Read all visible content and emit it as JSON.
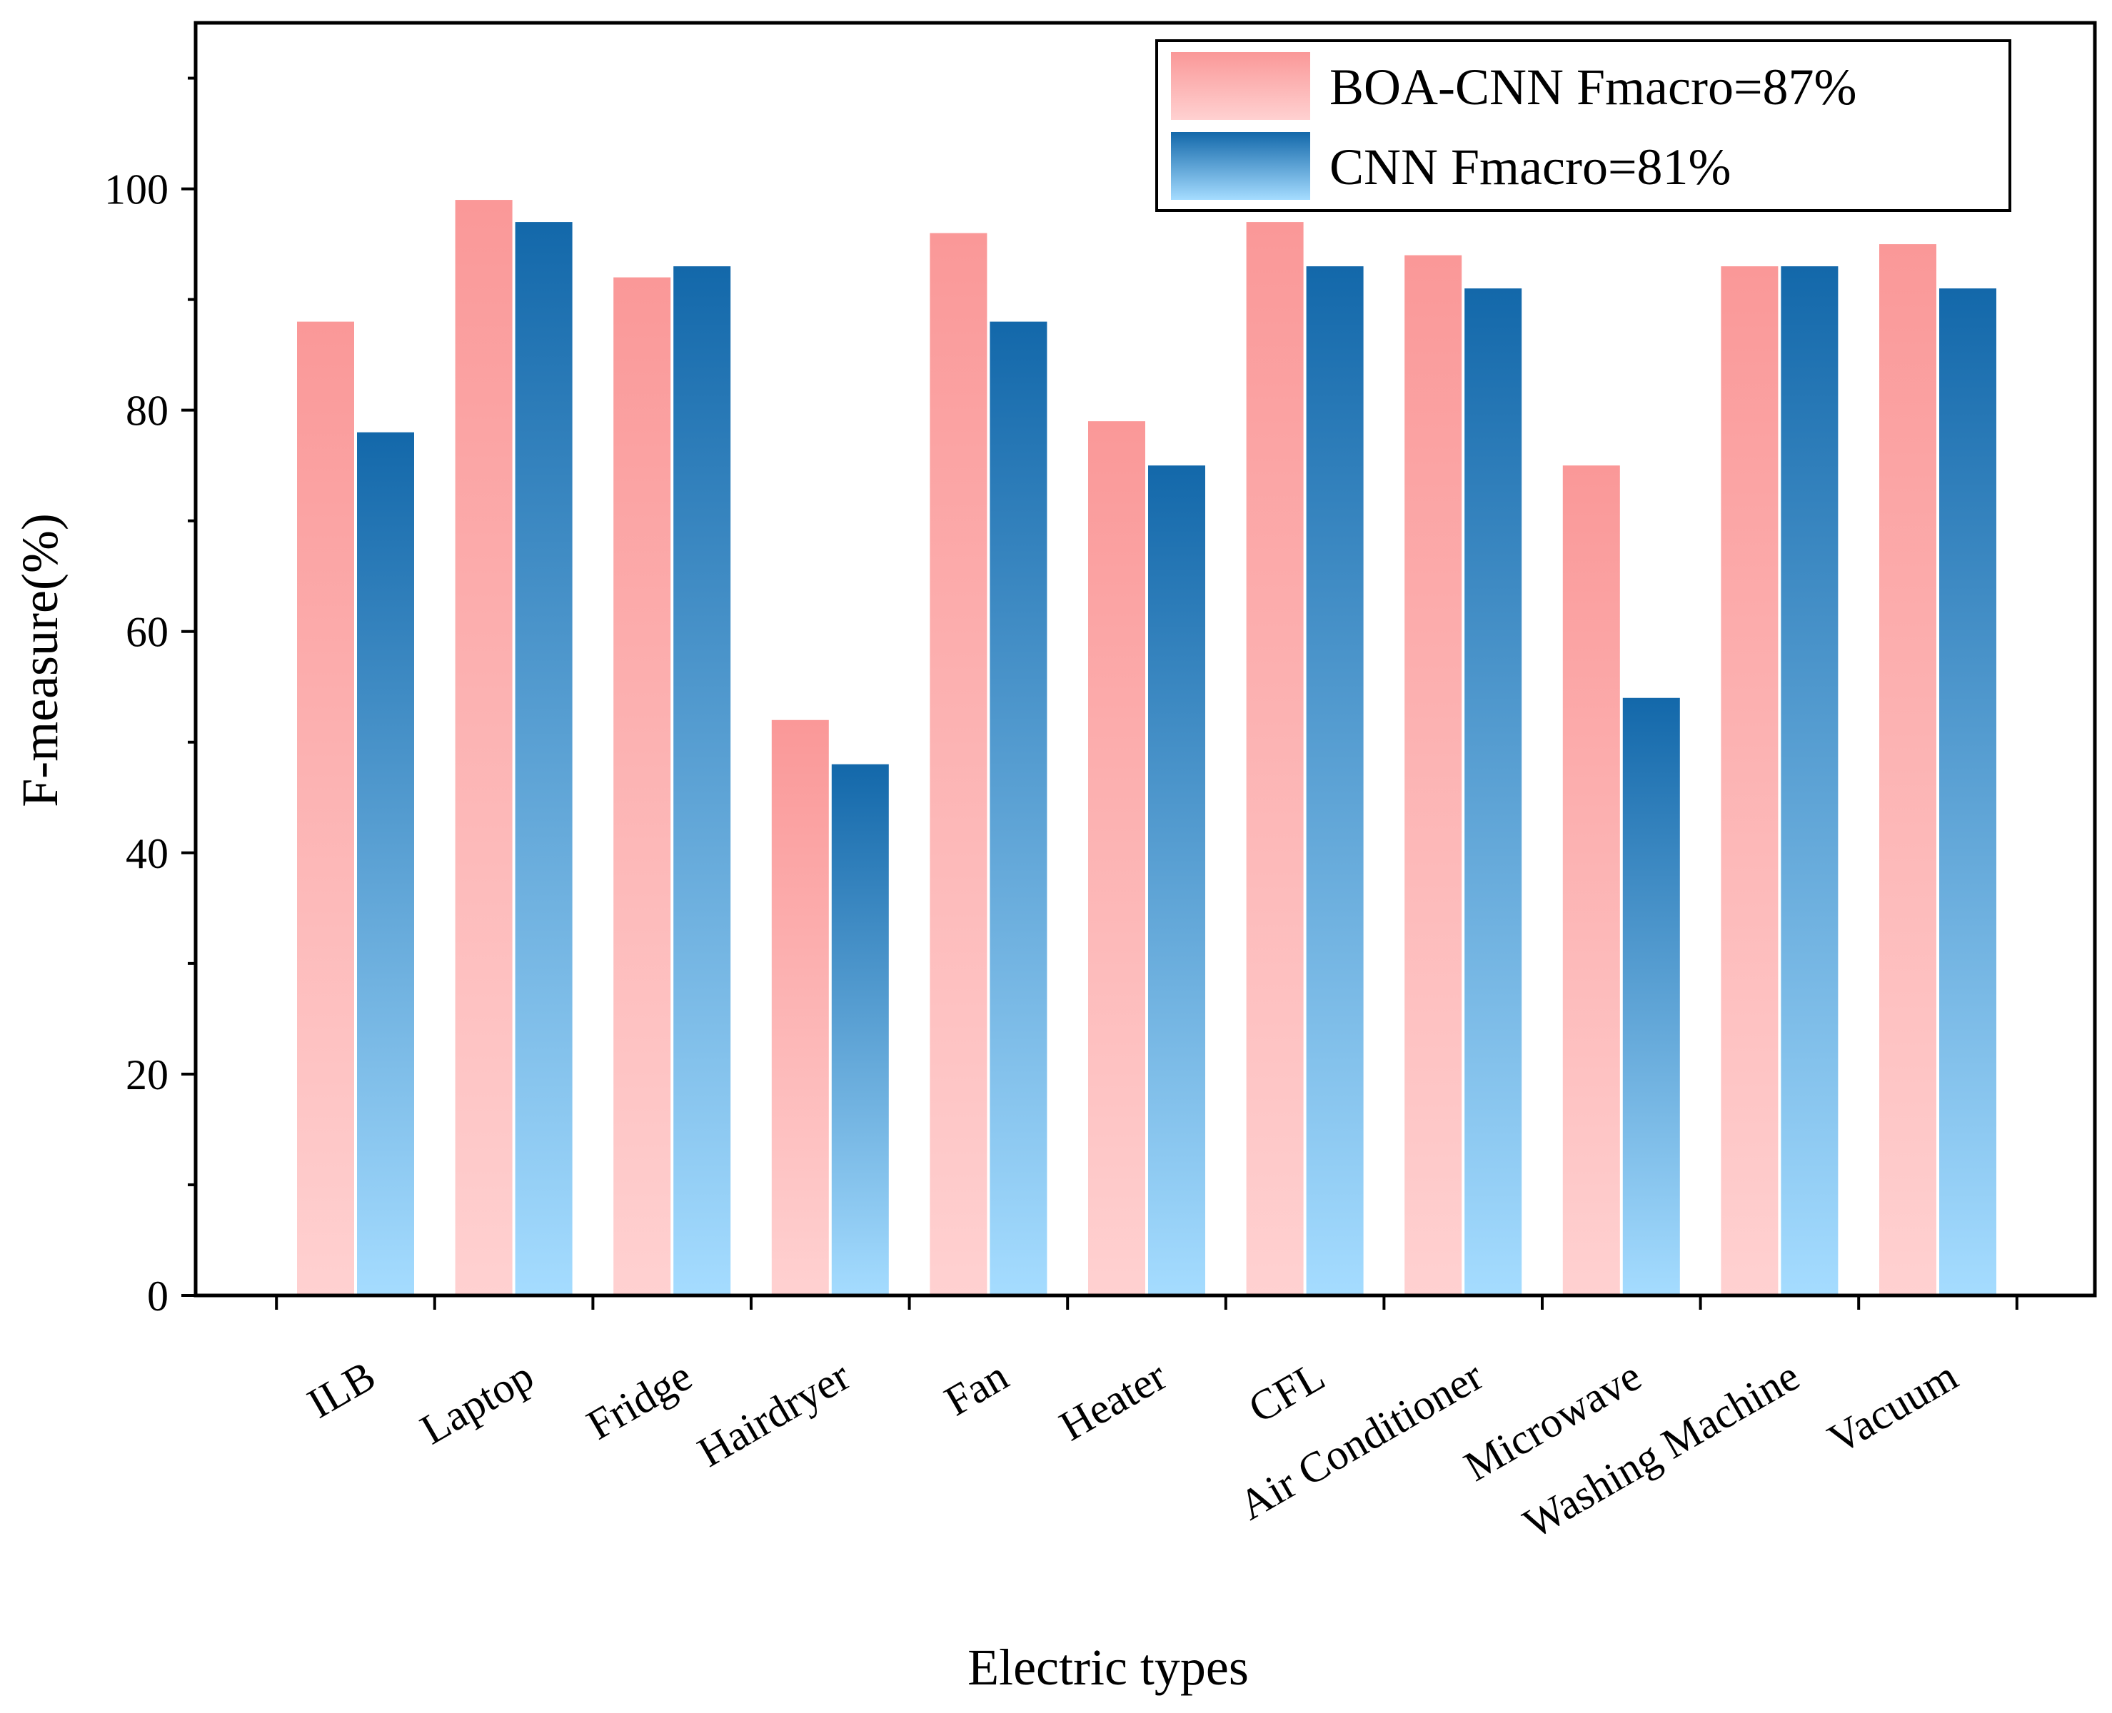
{
  "chart_data": {
    "type": "bar",
    "title": "",
    "xlabel": "Electric types",
    "ylabel": "F-measure(%)",
    "ylim": [
      0,
      115
    ],
    "yticks": [
      0,
      20,
      40,
      60,
      80,
      100
    ],
    "categories": [
      "ILB",
      "Laptop",
      "Fridge",
      "Hairdryer",
      "Fan",
      "Heater",
      "CFL",
      "Air Conditioner",
      "Microwave",
      "Washing Machine",
      "Vacuum"
    ],
    "series": [
      {
        "name": "BOA-CNN Fmacro=87%",
        "values": [
          88,
          99,
          92,
          52,
          96,
          79,
          97,
          94,
          75,
          93,
          95
        ],
        "color_top": "#FA9898",
        "color_bottom": "#FFD1D1"
      },
      {
        "name": "CNN Fmacro=81%",
        "values": [
          78,
          97,
          93,
          48,
          88,
          75,
          93,
          91,
          54,
          93,
          91
        ],
        "color_top": "#1368AA",
        "color_bottom": "#A5DCFF"
      }
    ],
    "legend_position": "top-right",
    "grid": false
  }
}
